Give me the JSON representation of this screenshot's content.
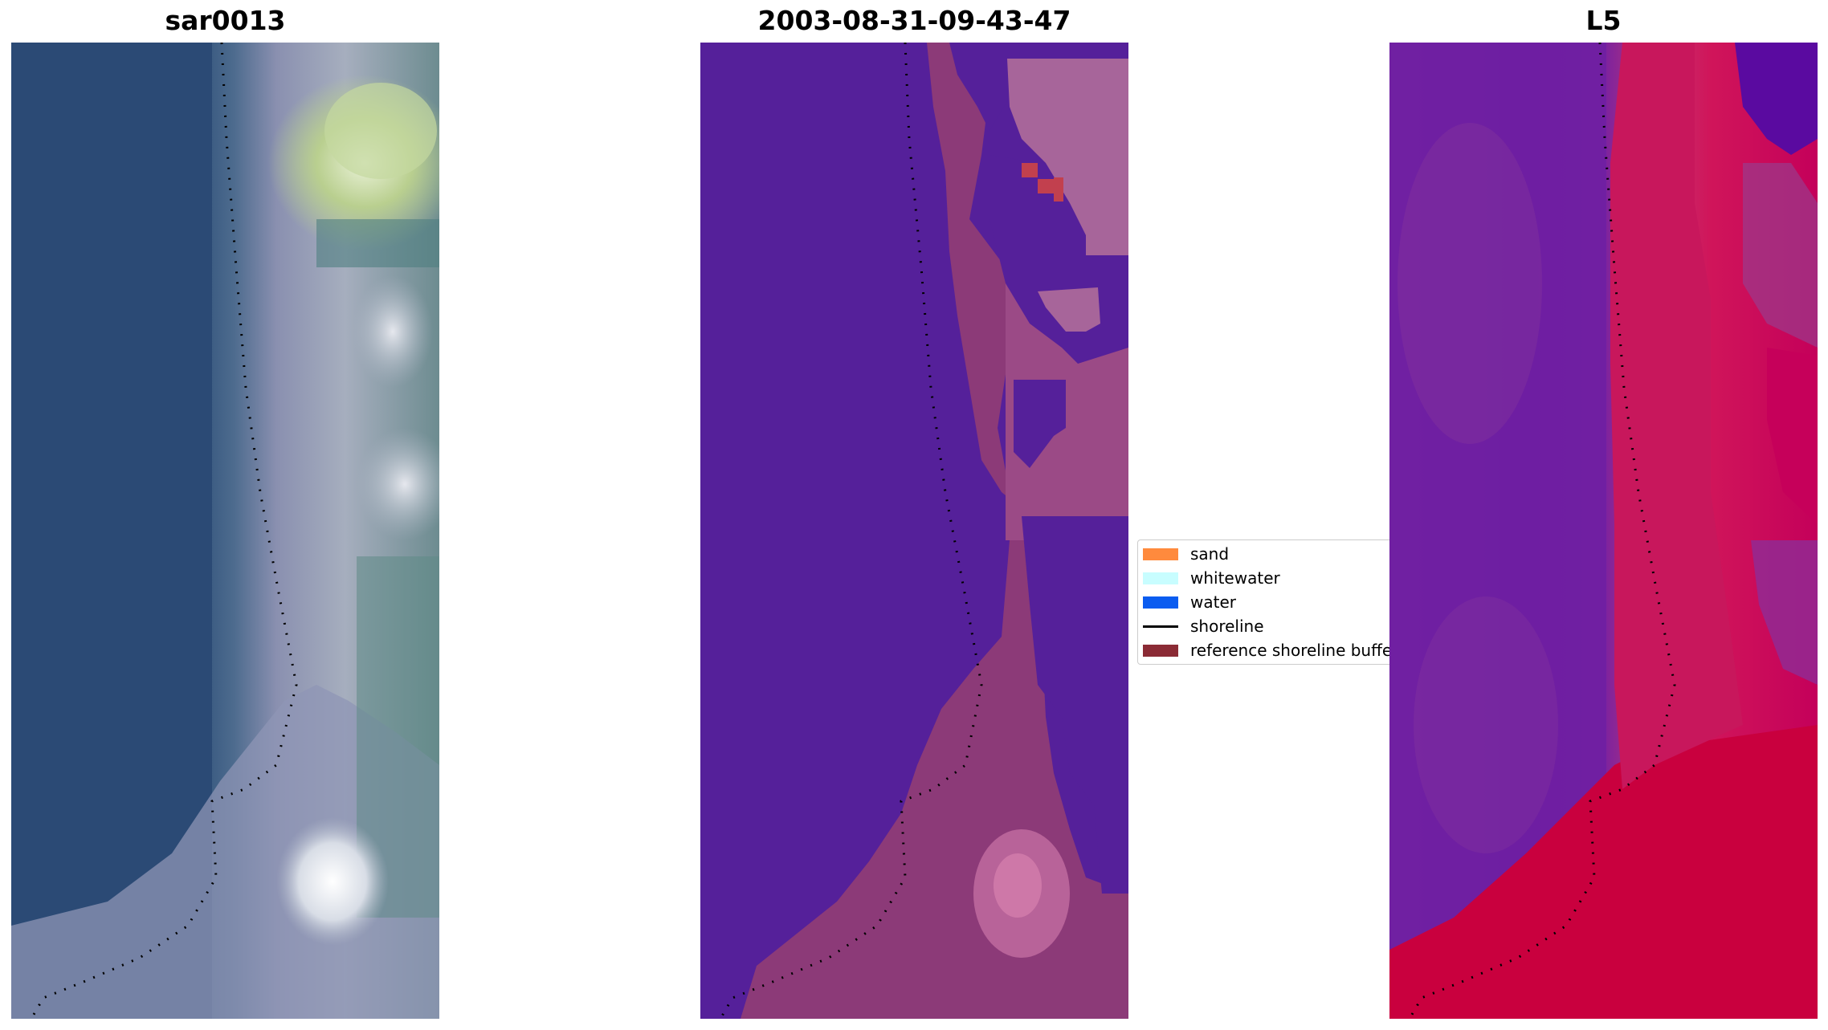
{
  "panels": [
    {
      "title": "sar0013"
    },
    {
      "title": "2003-08-31-09-43-47"
    },
    {
      "title": "L5"
    }
  ],
  "legend": {
    "items": [
      {
        "label": "sand",
        "color": "#ff8a3d",
        "kind": "patch"
      },
      {
        "label": "whitewater",
        "color": "#c8fdff",
        "kind": "patch"
      },
      {
        "label": "water",
        "color": "#0a5cf0",
        "kind": "patch"
      },
      {
        "label": "shoreline",
        "color": "#000000",
        "kind": "line"
      },
      {
        "label": "reference shoreline buffer",
        "color": "#8b2b35",
        "kind": "patch"
      }
    ]
  },
  "colors": {
    "water_rgb": "#2b4a75",
    "class_water_tint": "#55209a",
    "buffer_tint": "#8c3a78",
    "mndwi_low": "#6a159e",
    "mndwi_high": "#c8003c"
  }
}
